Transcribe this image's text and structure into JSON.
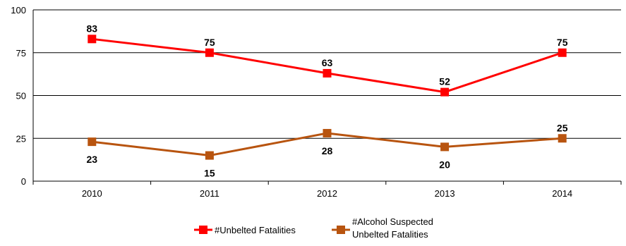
{
  "chart_data": {
    "type": "line",
    "categories": [
      "2010",
      "2011",
      "2012",
      "2013",
      "2014"
    ],
    "series": [
      {
        "name": "#Unbelted Fatalities",
        "values": [
          83,
          75,
          63,
          52,
          75
        ],
        "color": "#ff0000",
        "marker": "square",
        "label_position": "above"
      },
      {
        "name": "#Alcohol Suspected Unbelted Fatalities",
        "legend_lines": [
          "#Alcohol Suspected",
          "Unbelted Fatalities"
        ],
        "values": [
          23,
          15,
          28,
          20,
          25
        ],
        "color": "#b8540f",
        "marker": "square",
        "label_position": [
          "below",
          "below",
          "below",
          "below",
          "above"
        ]
      }
    ],
    "ylim": [
      0,
      100
    ],
    "yticks": [
      0,
      25,
      50,
      75,
      100
    ],
    "grid": true,
    "legend_position": "bottom",
    "title": "",
    "xlabel": "",
    "ylabel": ""
  }
}
